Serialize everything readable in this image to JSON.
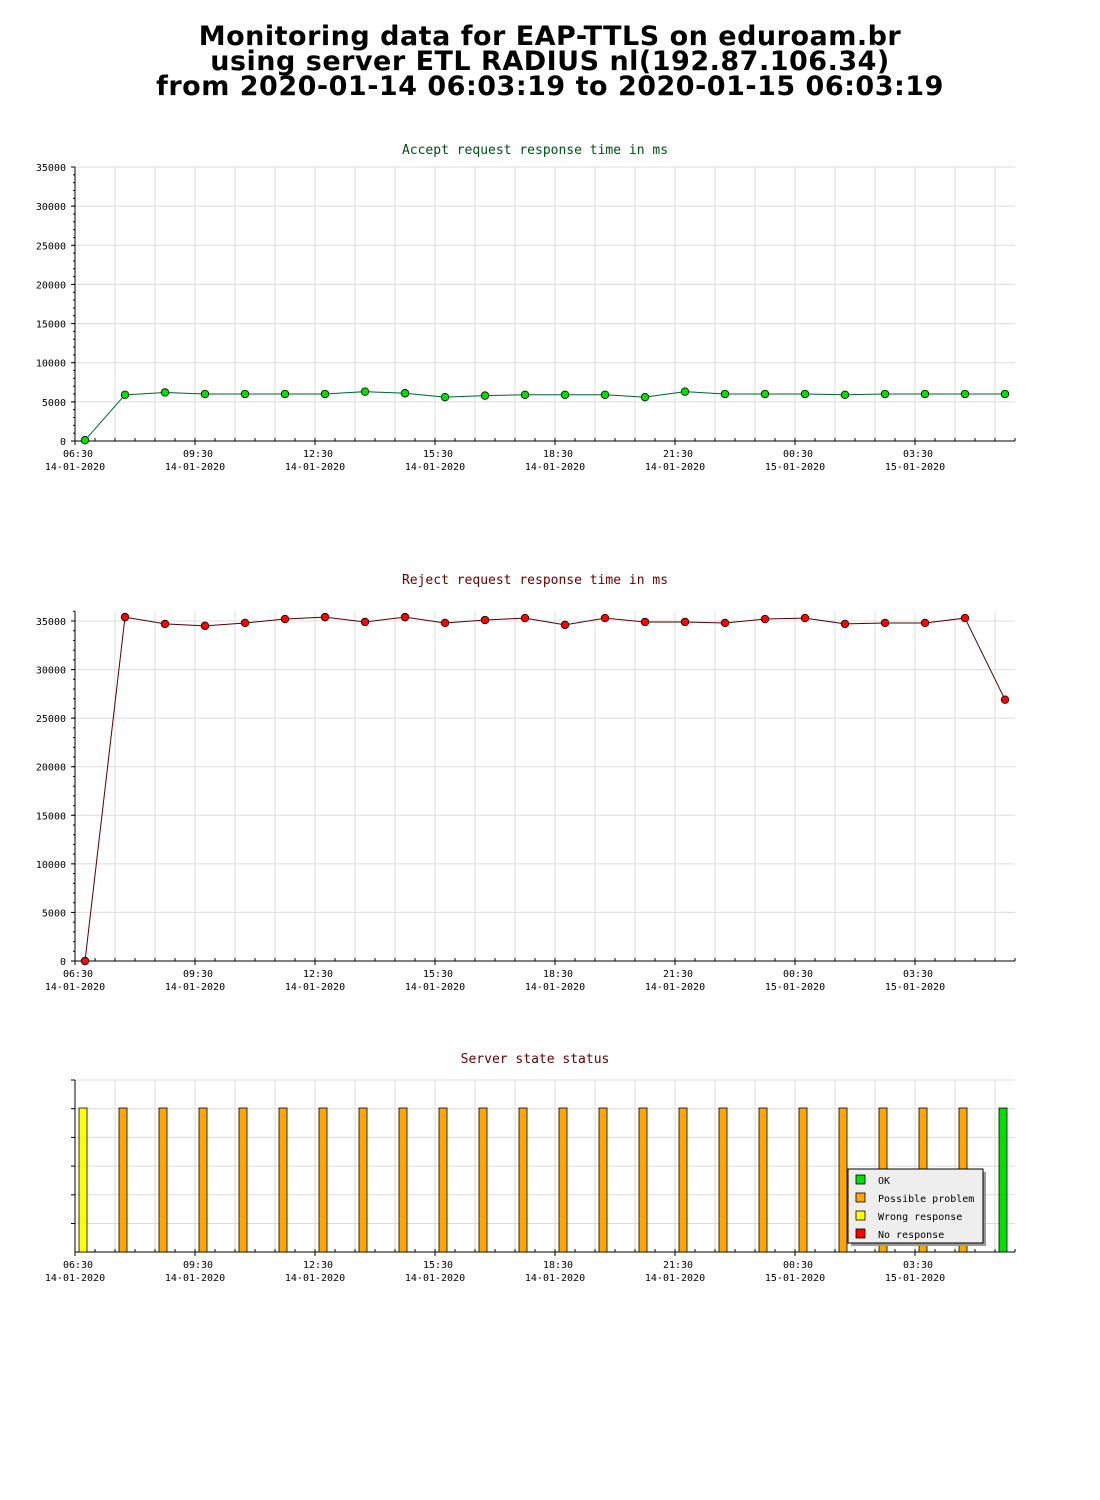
{
  "title": {
    "line1": "Monitoring data for EAP-TTLS on eduroam.br",
    "line2": "using server ETL RADIUS nl(192.87.106.34)",
    "line3": "from 2020-01-14 06:03:19 to 2020-01-15 06:03:19"
  },
  "colors": {
    "accept_marker": "#00e000",
    "accept_line": "#006030",
    "accept_title": "#004d1a",
    "reject_marker": "#ff0000",
    "reject_line": "#500000",
    "reject_title": "#600000",
    "status_title": "#600000",
    "ok": "#00e000",
    "possible_problem": "#ffa500",
    "wrong_response": "#ffff00",
    "no_response": "#ff0000"
  },
  "time_ticks": [
    {
      "time": "06:30",
      "date": "14-01-2020"
    },
    {
      "time": "09:30",
      "date": "14-01-2020"
    },
    {
      "time": "12:30",
      "date": "14-01-2020"
    },
    {
      "time": "15:30",
      "date": "14-01-2020"
    },
    {
      "time": "18:30",
      "date": "14-01-2020"
    },
    {
      "time": "21:30",
      "date": "14-01-2020"
    },
    {
      "time": "00:30",
      "date": "15-01-2020"
    },
    {
      "time": "03:30",
      "date": "15-01-2020"
    }
  ],
  "chart_data": [
    {
      "type": "line",
      "title": "Accept request response time in ms",
      "xlabel": "",
      "ylabel": "",
      "ylim": [
        0,
        35000
      ],
      "yticks": [
        0,
        5000,
        10000,
        15000,
        20000,
        25000,
        30000,
        35000
      ],
      "grid": true,
      "x_unit": "hours since 06:30 14-01-2020 (half-hour minor grid)",
      "x": [
        0.25,
        1.25,
        2.25,
        3.25,
        4.25,
        5.25,
        6.25,
        7.25,
        8.25,
        9.25,
        10.25,
        11.25,
        12.25,
        13.25,
        14.25,
        15.25,
        16.25,
        17.25,
        18.25,
        19.25,
        20.25,
        21.25,
        22.25,
        23.25
      ],
      "series": [
        {
          "values": [
            100,
            5900,
            6200,
            6000,
            6000,
            6000,
            6000,
            6300,
            6100,
            5600,
            5800,
            5900,
            5900,
            5900,
            5600,
            6300,
            6000,
            6000,
            6000,
            5900,
            6000,
            6000,
            6000,
            6000
          ]
        }
      ]
    },
    {
      "type": "line",
      "title": "Reject request response time in ms",
      "xlabel": "",
      "ylabel": "",
      "ylim": [
        0,
        36000
      ],
      "yticks": [
        0,
        5000,
        10000,
        15000,
        20000,
        25000,
        30000,
        35000
      ],
      "grid": true,
      "x": [
        0.25,
        1.25,
        2.25,
        3.25,
        4.25,
        5.25,
        6.25,
        7.25,
        8.25,
        9.25,
        10.25,
        11.25,
        12.25,
        13.25,
        14.25,
        15.25,
        16.25,
        17.25,
        18.25,
        19.25,
        20.25,
        21.25,
        22.25,
        23.25
      ],
      "series": [
        {
          "values": [
            0,
            35400,
            34700,
            34500,
            34800,
            35200,
            35400,
            34900,
            35400,
            34800,
            35100,
            35300,
            34600,
            35300,
            34900,
            34900,
            34800,
            35200,
            35300,
            34700,
            34800,
            34800,
            35300,
            26900
          ]
        }
      ]
    },
    {
      "type": "bar",
      "title": "Server state status",
      "xlabel": "",
      "ylabel": "",
      "grid": true,
      "legend": {
        "placement": "bottom-right",
        "entries": [
          {
            "key": "ok",
            "label": "OK"
          },
          {
            "key": "possible_problem",
            "label": "Possible problem"
          },
          {
            "key": "wrong_response",
            "label": "Wrong response"
          },
          {
            "key": "no_response",
            "label": "No response"
          }
        ]
      },
      "x": [
        0.25,
        1.25,
        2.25,
        3.25,
        4.25,
        5.25,
        6.25,
        7.25,
        8.25,
        9.25,
        10.25,
        11.25,
        12.25,
        13.25,
        14.25,
        15.25,
        16.25,
        17.25,
        18.25,
        19.25,
        20.25,
        21.25,
        22.25,
        23.25
      ],
      "states": [
        "wrong_response",
        "possible_problem",
        "possible_problem",
        "possible_problem",
        "possible_problem",
        "possible_problem",
        "possible_problem",
        "possible_problem",
        "possible_problem",
        "possible_problem",
        "possible_problem",
        "possible_problem",
        "possible_problem",
        "possible_problem",
        "possible_problem",
        "possible_problem",
        "possible_problem",
        "possible_problem",
        "possible_problem",
        "possible_problem",
        "possible_problem",
        "possible_problem",
        "possible_problem",
        "ok"
      ]
    }
  ]
}
